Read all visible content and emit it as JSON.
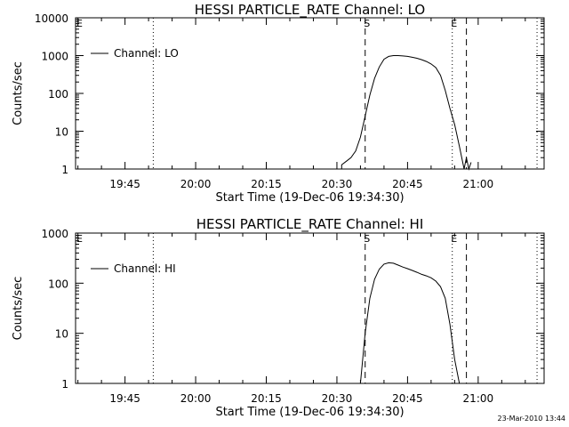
{
  "footer": {
    "stamp": "23-Mar-2010 13:44"
  },
  "chart_data": [
    {
      "type": "line",
      "title": "HESSI PARTICLE_RATE Channel: LO",
      "xlabel": "Start Time (19-Dec-06 19:34:30)",
      "ylabel": "Counts/sec",
      "y_scale": "log",
      "ylim": [
        1,
        10000
      ],
      "yticks": [
        1,
        10,
        100,
        1000,
        10000
      ],
      "ytick_labels": [
        "1",
        "10",
        "100",
        "1000",
        "10000"
      ],
      "xlim": [
        "19:34:30",
        "21:14:00"
      ],
      "xticks": [
        "19:45",
        "20:00",
        "20:15",
        "20:30",
        "20:45",
        "21:00"
      ],
      "grid": false,
      "legend": {
        "position": "top-left",
        "entries": [
          "Channel: LO"
        ]
      },
      "markers": [
        {
          "label": "E",
          "x": "19:34:30",
          "style": "none"
        },
        {
          "label": "S",
          "x": "20:36:00",
          "style": "dashed"
        },
        {
          "label": "E",
          "x": "20:54:30",
          "style": "dotted"
        },
        {
          "label": "",
          "x": "20:57:30",
          "style": "dashed"
        },
        {
          "label": "",
          "x": "19:51:00",
          "style": "dotted"
        },
        {
          "label": "",
          "x": "21:12:30",
          "style": "dotted"
        }
      ],
      "series": [
        {
          "name": "Channel: LO",
          "x": [
            "20:30:00",
            "20:31:00",
            "20:31:00",
            "20:32:00",
            "20:33:00",
            "20:34:00",
            "20:35:00",
            "20:36:00",
            "20:37:00",
            "20:38:00",
            "20:39:00",
            "20:40:00",
            "20:41:00",
            "20:42:00",
            "20:43:00",
            "20:44:00",
            "20:45:00",
            "20:46:00",
            "20:47:00",
            "20:48:00",
            "20:49:00",
            "20:50:00",
            "20:51:00",
            "20:52:00",
            "20:53:00",
            "20:54:00",
            "20:55:00",
            "20:56:00",
            "20:57:00",
            "20:57:30",
            "20:58:00",
            "20:58:30"
          ],
          "y": [
            1,
            1,
            1.3,
            1.6,
            2,
            3,
            7,
            25,
            90,
            250,
            500,
            800,
            950,
            1000,
            1000,
            980,
            950,
            900,
            850,
            780,
            700,
            600,
            480,
            300,
            120,
            40,
            15,
            4,
            1,
            2,
            1,
            1.5
          ]
        }
      ]
    },
    {
      "type": "line",
      "title": "HESSI PARTICLE_RATE Channel: HI",
      "xlabel": "Start Time (19-Dec-06 19:34:30)",
      "ylabel": "Counts/sec",
      "y_scale": "log",
      "ylim": [
        1,
        1000
      ],
      "yticks": [
        1,
        10,
        100,
        1000
      ],
      "ytick_labels": [
        "1",
        "10",
        "100",
        "1000"
      ],
      "xlim": [
        "19:34:30",
        "21:14:00"
      ],
      "xticks": [
        "19:45",
        "20:00",
        "20:15",
        "20:30",
        "20:45",
        "21:00"
      ],
      "grid": false,
      "legend": {
        "position": "top-left",
        "entries": [
          "Channel: HI"
        ]
      },
      "markers": [
        {
          "label": "E",
          "x": "19:34:30",
          "style": "none"
        },
        {
          "label": "S",
          "x": "20:36:00",
          "style": "dashed"
        },
        {
          "label": "E",
          "x": "20:54:30",
          "style": "dotted"
        },
        {
          "label": "",
          "x": "20:57:30",
          "style": "dashed"
        },
        {
          "label": "",
          "x": "19:51:00",
          "style": "dotted"
        },
        {
          "label": "",
          "x": "21:12:30",
          "style": "dotted"
        }
      ],
      "series": [
        {
          "name": "Channel: HI",
          "x": [
            "20:35:00",
            "20:36:00",
            "20:37:00",
            "20:38:00",
            "20:39:00",
            "20:40:00",
            "20:41:00",
            "20:42:00",
            "20:43:00",
            "20:44:00",
            "20:45:00",
            "20:46:00",
            "20:47:00",
            "20:48:00",
            "20:49:00",
            "20:50:00",
            "20:51:00",
            "20:52:00",
            "20:53:00",
            "20:54:00",
            "20:55:00",
            "20:56:00"
          ],
          "y": [
            1,
            10,
            50,
            120,
            190,
            240,
            255,
            250,
            230,
            210,
            195,
            180,
            165,
            150,
            140,
            128,
            110,
            85,
            50,
            15,
            3,
            1
          ]
        }
      ]
    }
  ]
}
